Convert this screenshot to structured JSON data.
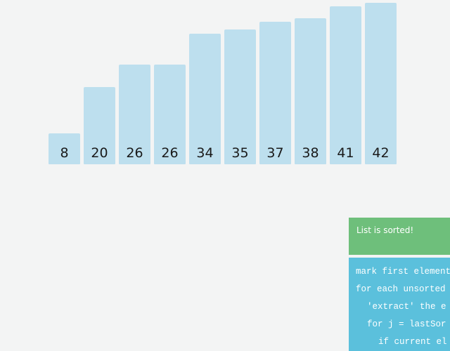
{
  "bars": {
    "values": [
      8,
      20,
      26,
      26,
      34,
      35,
      37,
      38,
      41,
      42
    ],
    "color": "#bddfee"
  },
  "status": {
    "message": "List is sorted!",
    "color": "#6ebf7b"
  },
  "pseudocode": {
    "color": "#5bc0dc",
    "lines": [
      {
        "text": "mark first element",
        "indent": 0
      },
      {
        "text": "for each unsorted",
        "indent": 0
      },
      {
        "text": "'extract' the e",
        "indent": 1
      },
      {
        "text": "for j = lastSor",
        "indent": 1
      },
      {
        "text": "if current el",
        "indent": 2
      }
    ]
  }
}
